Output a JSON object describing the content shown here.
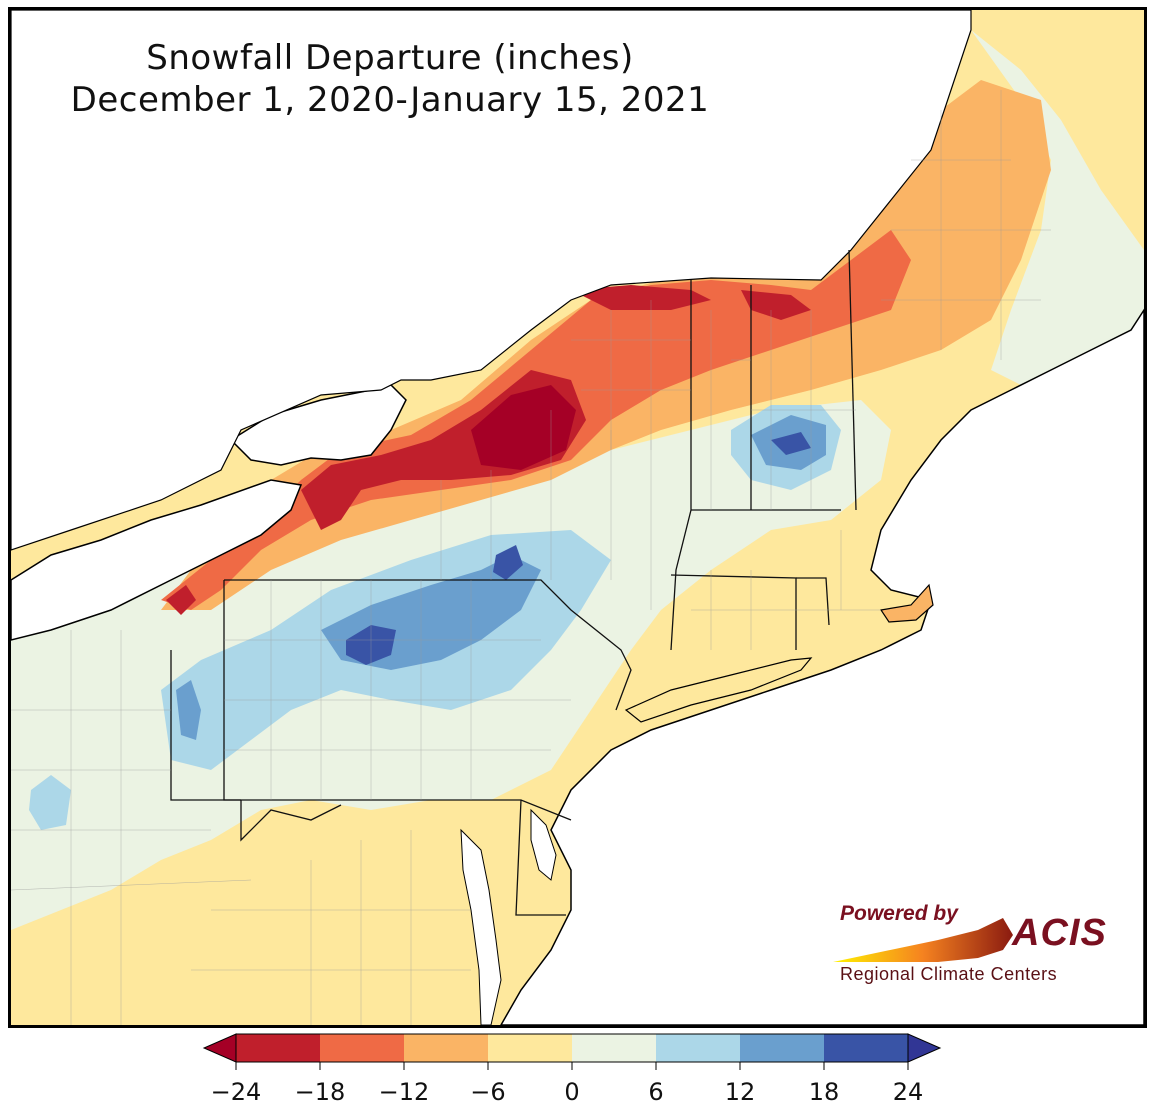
{
  "title": {
    "line1": "Snowfall Departure (inches)",
    "line2": "December 1, 2020-January 15, 2021"
  },
  "logo": {
    "powered_by": "Powered by",
    "brand": "ACIS",
    "subtitle": "Regional Climate Centers"
  },
  "legend": {
    "ticks": [
      "−24",
      "−18",
      "−12",
      "−6",
      "0",
      "6",
      "12",
      "18",
      "24"
    ],
    "colors": [
      "#c01f2c",
      "#ef6a45",
      "#fab465",
      "#fee89d",
      "#ebf3e3",
      "#acd7e8",
      "#6a9fce",
      "#3954a6"
    ],
    "under_color": "#a50026",
    "over_color": "#313695"
  },
  "palette": {
    "water": "#ffffff",
    "background_land": "#fee89d"
  }
}
